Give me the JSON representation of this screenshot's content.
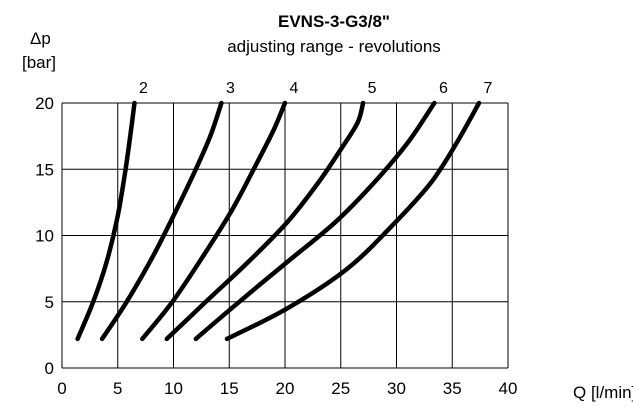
{
  "chart_data": {
    "type": "line",
    "title": "EVNS-3-G3/8\"",
    "subtitle": "adjusting range - revolutions",
    "ylabel_line1": "Δp",
    "ylabel_line2": "[bar]",
    "xlabel": "Q [l/min]",
    "xlim": [
      0,
      40
    ],
    "ylim": [
      0,
      20
    ],
    "xticks": [
      0,
      5,
      10,
      15,
      20,
      25,
      30,
      35,
      40
    ],
    "yticks": [
      0,
      5,
      10,
      15,
      20
    ],
    "grid": true,
    "series": [
      {
        "name": "2",
        "points": [
          [
            1.4,
            2.2
          ],
          [
            2.8,
            5
          ],
          [
            4.0,
            8
          ],
          [
            5.0,
            11.5
          ],
          [
            5.7,
            15
          ],
          [
            6.2,
            18
          ],
          [
            6.5,
            20
          ]
        ]
      },
      {
        "name": "3",
        "points": [
          [
            3.6,
            2.2
          ],
          [
            5.8,
            5
          ],
          [
            8.2,
            8.5
          ],
          [
            10.3,
            12
          ],
          [
            12.0,
            15
          ],
          [
            13.3,
            17.5
          ],
          [
            14.3,
            20
          ]
        ]
      },
      {
        "name": "4",
        "points": [
          [
            7.2,
            2.2
          ],
          [
            9.9,
            5
          ],
          [
            12.7,
            8.5
          ],
          [
            15.3,
            12
          ],
          [
            17.5,
            15.5
          ],
          [
            19.0,
            18
          ],
          [
            20.0,
            20
          ]
        ]
      },
      {
        "name": "5",
        "points": [
          [
            9.4,
            2.2
          ],
          [
            12.9,
            5
          ],
          [
            16.7,
            8
          ],
          [
            20.2,
            11
          ],
          [
            23.0,
            14
          ],
          [
            25.0,
            16.5
          ],
          [
            26.5,
            18.5
          ],
          [
            27.0,
            20
          ]
        ]
      },
      {
        "name": "6",
        "points": [
          [
            12.0,
            2.2
          ],
          [
            15.9,
            5
          ],
          [
            20.2,
            8
          ],
          [
            24.5,
            11
          ],
          [
            28.0,
            14
          ],
          [
            31.0,
            17
          ],
          [
            33.4,
            20
          ]
        ]
      },
      {
        "name": "7",
        "points": [
          [
            14.8,
            2.2
          ],
          [
            20.2,
            4.5
          ],
          [
            25.6,
            7.5
          ],
          [
            29.9,
            11
          ],
          [
            33.1,
            14
          ],
          [
            35.4,
            17
          ],
          [
            37.4,
            20
          ]
        ]
      }
    ]
  }
}
